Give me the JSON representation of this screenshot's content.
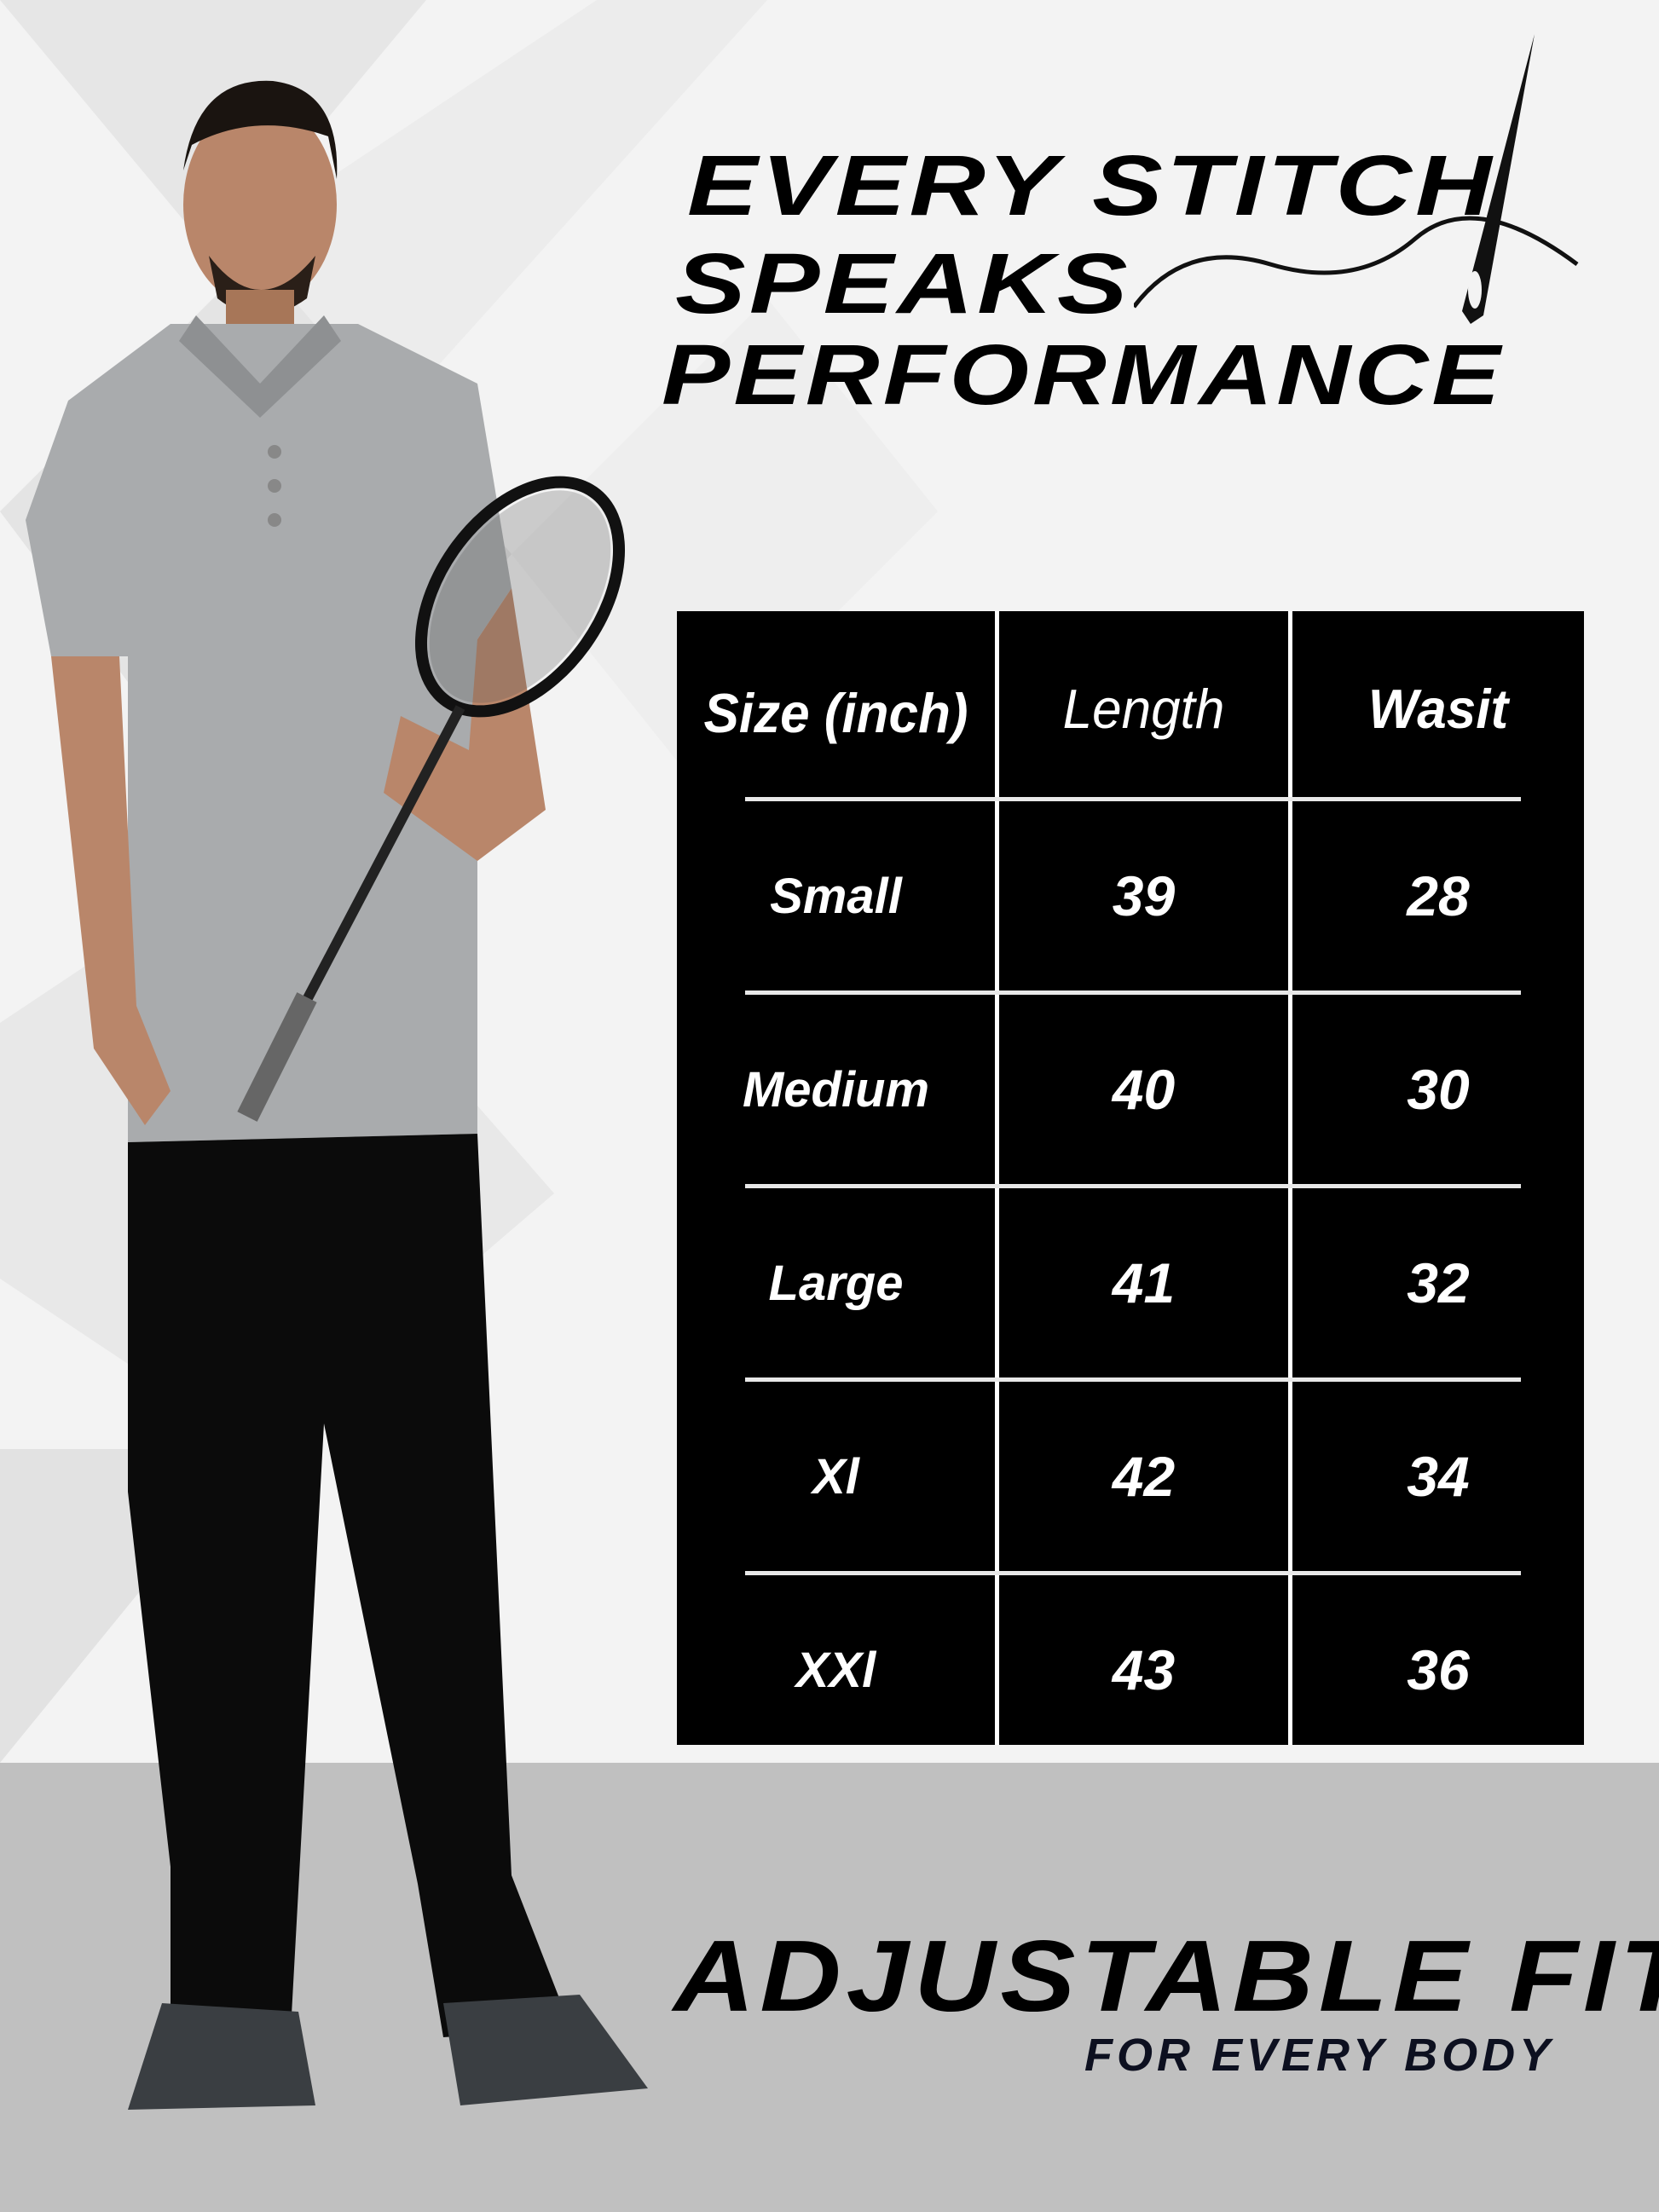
{
  "headline": {
    "line1": "EVERY STITCH",
    "line2": "SPEAKS",
    "line3": "PERFORMANCE"
  },
  "size_table": {
    "headers": [
      "Size (inch)",
      "Length",
      "Wasit"
    ],
    "rows": [
      {
        "size": "Small",
        "length": "39",
        "waist": "28"
      },
      {
        "size": "Medium",
        "length": "40",
        "waist": "30"
      },
      {
        "size": "Large",
        "length": "41",
        "waist": "32"
      },
      {
        "size": "Xl",
        "length": "42",
        "waist": "34"
      },
      {
        "size": "XXl",
        "length": "43",
        "waist": "36"
      }
    ]
  },
  "footer": {
    "title": "ADJUSTABLE FIT",
    "subtitle": "FOR EVERY BODY"
  },
  "colors": {
    "table_bg": "#000000",
    "floor": "#c0c0c0",
    "subtitle": "#0d1020",
    "shirt": "#a9abad",
    "pants": "#0b0b0b"
  },
  "icons": [
    "needle-thread-icon"
  ]
}
